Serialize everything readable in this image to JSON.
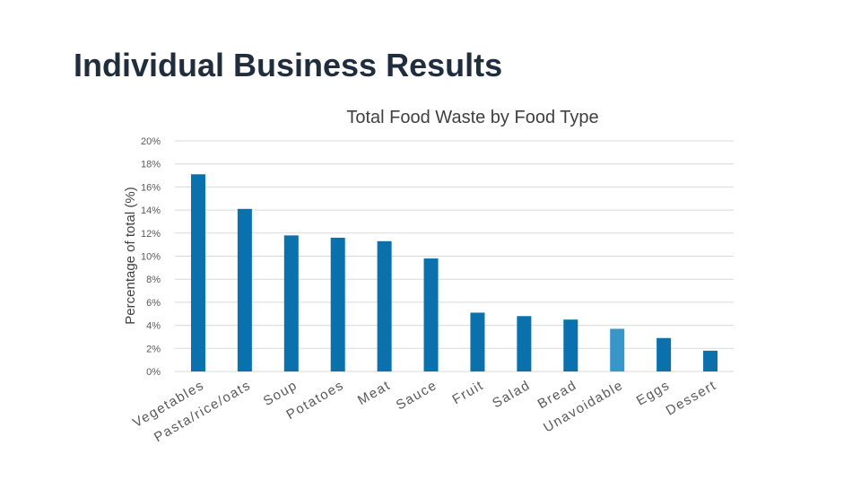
{
  "slide": {
    "title": "Individual Business Results"
  },
  "colors": {
    "bar": "#0a71ac",
    "bar_highlight": "#3a96c9",
    "grid": "#d9d9d9",
    "tick_text": "#595959",
    "title_text": "#404040"
  },
  "chart_data": {
    "type": "bar",
    "title": "Total Food Waste by Food Type",
    "xlabel": "",
    "ylabel": "Percentage of total (%)",
    "ylim": [
      0,
      20
    ],
    "yticks": [
      "0%",
      "2%",
      "4%",
      "6%",
      "8%",
      "10%",
      "12%",
      "14%",
      "16%",
      "18%",
      "20%"
    ],
    "grid": true,
    "categories": [
      "Vegetables",
      "Pasta/rice/oats",
      "Soup",
      "Potatoes",
      "Meat",
      "Sauce",
      "Fruit",
      "Salad",
      "Bread",
      "Unavoidable",
      "Eggs",
      "Dessert"
    ],
    "values": [
      17.1,
      14.1,
      11.8,
      11.6,
      11.3,
      9.8,
      5.1,
      4.8,
      4.5,
      3.7,
      2.9,
      1.8
    ],
    "highlight": [
      "Unavoidable"
    ]
  }
}
